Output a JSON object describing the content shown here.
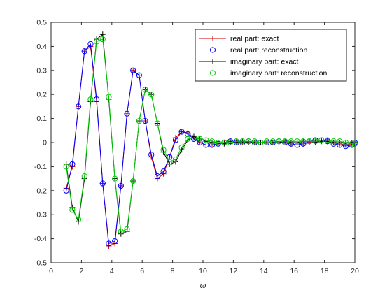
{
  "chart_data": {
    "type": "line",
    "title": "",
    "xlabel": "ω",
    "ylabel": "",
    "xlim": [
      0,
      20
    ],
    "ylim": [
      -0.5,
      0.5
    ],
    "grid": false,
    "legend_placement": "top-right",
    "xticks": [
      "0",
      "2",
      "4",
      "6",
      "8",
      "10",
      "12",
      "14",
      "16",
      "18",
      "20"
    ],
    "yticks": [
      "-0.5",
      "-0.4",
      "-0.3",
      "-0.2",
      "-0.1",
      "0",
      "0.1",
      "0.2",
      "0.3",
      "0.4",
      "0.5"
    ],
    "x": [
      1.0,
      1.4,
      1.8,
      2.2,
      2.6,
      3.0,
      3.4,
      3.8,
      4.2,
      4.6,
      5.0,
      5.4,
      5.8,
      6.2,
      6.6,
      7.0,
      7.4,
      7.8,
      8.2,
      8.6,
      9.0,
      9.4,
      9.8,
      10.2,
      10.6,
      11.0,
      11.4,
      11.8,
      12.2,
      12.6,
      13.0,
      13.4,
      13.8,
      14.2,
      14.6,
      15.0,
      15.4,
      15.8,
      16.2,
      16.6,
      17.0,
      17.4,
      17.8,
      18.2,
      18.6,
      19.0,
      19.4,
      19.8,
      20.0
    ],
    "series": [
      {
        "name": "real part: exact",
        "color": "#cc0000",
        "marker": "plus",
        "values": [
          -0.19,
          -0.1,
          0.15,
          0.38,
          0.4,
          0.17,
          -0.17,
          -0.43,
          -0.42,
          -0.18,
          0.12,
          0.3,
          0.28,
          0.09,
          -0.06,
          -0.15,
          -0.13,
          -0.06,
          0.02,
          0.045,
          0.04,
          0.02,
          0.0,
          -0.01,
          -0.01,
          -0.005,
          0.0,
          0.005,
          0.005,
          0.0,
          0.0,
          0.0,
          0.0,
          0.0,
          0.0,
          0.0,
          0.0,
          -0.005,
          -0.01,
          -0.005,
          0.0,
          0.005,
          0.01,
          0.005,
          0.0,
          -0.005,
          -0.01,
          -0.005,
          0.0
        ]
      },
      {
        "name": "real part: reconstruction",
        "color": "#0000ff",
        "marker": "circle",
        "values": [
          -0.2,
          -0.09,
          0.15,
          0.38,
          0.41,
          0.18,
          -0.17,
          -0.42,
          -0.41,
          -0.18,
          0.12,
          0.3,
          0.28,
          0.09,
          -0.05,
          -0.14,
          -0.12,
          -0.06,
          0.01,
          0.045,
          0.035,
          0.015,
          0.0,
          -0.01,
          -0.01,
          -0.005,
          0.0,
          0.005,
          0.0,
          0.0,
          0.005,
          0.0,
          0.0,
          0.0,
          0.0,
          0.005,
          0.0,
          -0.005,
          -0.01,
          -0.005,
          0.005,
          0.01,
          0.01,
          0.005,
          -0.005,
          -0.01,
          -0.015,
          -0.01,
          0.0
        ]
      },
      {
        "name": "imaginary part: exact",
        "color": "#000000",
        "marker": "plus",
        "values": [
          -0.09,
          -0.27,
          -0.33,
          -0.15,
          0.17,
          0.43,
          0.45,
          0.18,
          -0.15,
          -0.38,
          -0.37,
          -0.16,
          0.09,
          0.22,
          0.2,
          0.08,
          -0.04,
          -0.09,
          -0.08,
          -0.03,
          0.01,
          0.025,
          0.015,
          0.005,
          0.0,
          0.0,
          -0.005,
          0.0,
          0.0,
          0.005,
          0.0,
          0.0,
          0.0,
          0.0,
          0.0,
          0.0,
          0.005,
          0.0,
          0.0,
          0.005,
          0.005,
          0.0,
          0.005,
          0.005,
          0.0,
          0.0,
          0.0,
          0.0,
          0.0
        ]
      },
      {
        "name": "imaginary part: reconstruction",
        "color": "#00cc00",
        "marker": "circle",
        "values": [
          -0.1,
          -0.28,
          -0.32,
          -0.14,
          0.18,
          0.42,
          0.43,
          0.19,
          -0.15,
          -0.37,
          -0.36,
          -0.16,
          0.09,
          0.22,
          0.2,
          0.08,
          -0.03,
          -0.08,
          -0.07,
          -0.02,
          0.015,
          0.02,
          0.015,
          0.01,
          0.005,
          0.0,
          0.0,
          0.0,
          0.005,
          0.005,
          0.005,
          0.005,
          0.0,
          0.005,
          0.005,
          0.005,
          0.005,
          0.005,
          0.005,
          0.005,
          0.005,
          0.005,
          0.01,
          0.01,
          0.005,
          0.005,
          0.0,
          -0.005,
          -0.005
        ]
      }
    ]
  }
}
